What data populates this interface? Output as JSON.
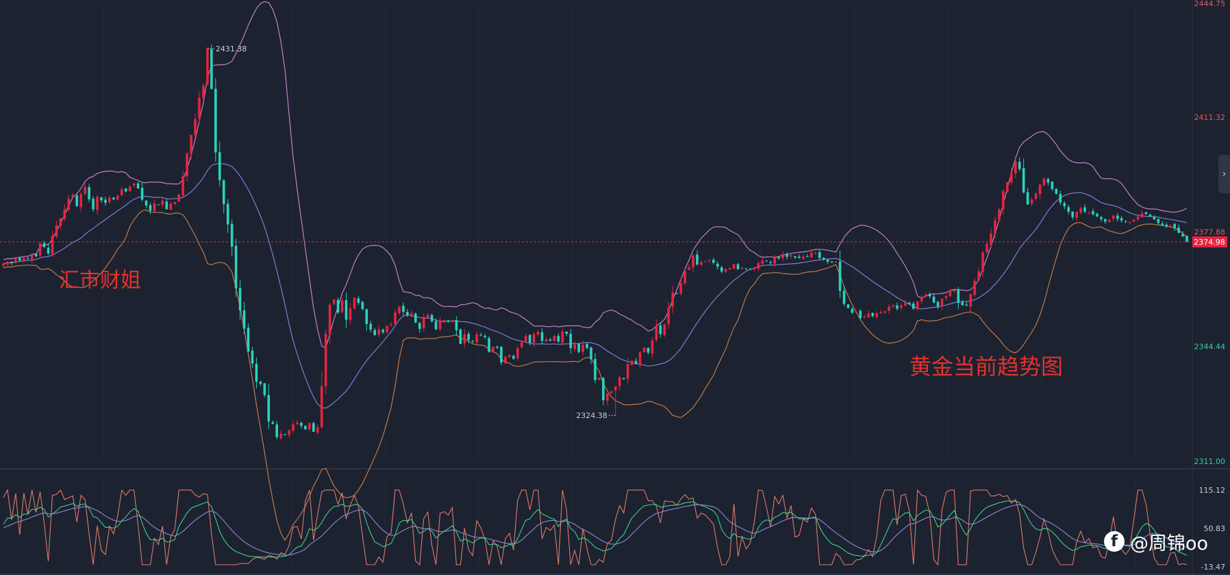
{
  "chart_data": {
    "type": "candlestick",
    "title": "",
    "price_axis": {
      "ticks": [
        {
          "value": 2444.75,
          "label": "2444.75"
        },
        {
          "value": 2411.32,
          "label": "2411.32"
        },
        {
          "value": 2377.88,
          "label": "2377.88"
        },
        {
          "value": 2344.44,
          "label": "2344.44"
        },
        {
          "value": 2311.0,
          "label": "2311.00"
        }
      ],
      "ylim": [
        2311.0,
        2444.75
      ],
      "last_price": {
        "value": 2374.98,
        "label": "2374.98"
      }
    },
    "annotations": [
      {
        "type": "high",
        "value": 2431.38,
        "label": "2431.38",
        "candle_index": 50
      },
      {
        "type": "low",
        "value": 2324.38,
        "label": "2324.38",
        "candle_index": 150
      }
    ],
    "candle_closes": [
      2368.6,
      2369.2,
      2368.8,
      2370.1,
      2369.5,
      2370.4,
      2370.0,
      2371.2,
      2370.8,
      2374.6,
      2373.5,
      2371.6,
      2376.8,
      2379.8,
      2381.9,
      2384.5,
      2387.6,
      2388.7,
      2385.4,
      2388.9,
      2391.0,
      2387.4,
      2384.5,
      2388.2,
      2387.1,
      2386.4,
      2387.9,
      2387.4,
      2388.5,
      2390.3,
      2389.7,
      2391.1,
      2392.0,
      2390.6,
      2387.3,
      2385.6,
      2384.1,
      2386.2,
      2385.8,
      2387.0,
      2384.5,
      2386.1,
      2386.6,
      2388.8,
      2394.2,
      2400.8,
      2406.2,
      2410.8,
      2417.0,
      2420.6,
      2431.4,
      2419.6,
      2401.1,
      2393.0,
      2386.0,
      2380.1,
      2373.6,
      2361.4,
      2355.0,
      2349.7,
      2343.0,
      2339.5,
      2334.2,
      2333.6,
      2330.3,
      2322.6,
      2321.9,
      2318.0,
      2319.1,
      2318.6,
      2320.0,
      2321.8,
      2322.3,
      2321.3,
      2320.3,
      2322.1,
      2319.6,
      2320.9,
      2332.9,
      2348.2,
      2356.7,
      2358.2,
      2354.4,
      2357.9,
      2352.3,
      2355.6,
      2358.7,
      2357.2,
      2355.4,
      2351.0,
      2349.4,
      2347.8,
      2349.5,
      2348.6,
      2350.5,
      2351.0,
      2354.4,
      2356.1,
      2354.6,
      2353.5,
      2354.2,
      2351.4,
      2349.6,
      2353.1,
      2353.7,
      2351.8,
      2349.5,
      2352.1,
      2352.2,
      2351.9,
      2352.2,
      2349.2,
      2345.2,
      2348.0,
      2346.4,
      2345.9,
      2348.0,
      2347.8,
      2347.2,
      2342.9,
      2344.4,
      2344.1,
      2339.8,
      2341.5,
      2342.0,
      2340.9,
      2344.0,
      2345.7,
      2347.6,
      2345.6,
      2348.1,
      2348.8,
      2346.1,
      2346.5,
      2346.1,
      2347.6,
      2345.9,
      2348.8,
      2348.2,
      2344.0,
      2345.0,
      2342.9,
      2345.0,
      2344.0,
      2340.8,
      2334.7,
      2335.4,
      2328.8,
      2330.8,
      2331.4,
      2332.8,
      2335.5,
      2334.9,
      2339.4,
      2340.4,
      2339.4,
      2342.8,
      2344.1,
      2342.7,
      2346.2,
      2350.4,
      2348.1,
      2351.0,
      2355.9,
      2360.2,
      2360.0,
      2363.0,
      2366.5,
      2367.6,
      2371.0,
      2368.4,
      2369.1,
      2369.3,
      2369.6,
      2368.9,
      2367.8,
      2366.3,
      2367.1,
      2367.4,
      2368.5,
      2367.0,
      2367.5,
      2367.1,
      2366.9,
      2367.2,
      2368.8,
      2369.6,
      2369.3,
      2368.8,
      2370.3,
      2370.2,
      2371.4,
      2370.6,
      2371.1,
      2370.4,
      2370.3,
      2370.7,
      2370.6,
      2371.9,
      2371.8,
      2370.3,
      2370.0,
      2369.2,
      2369.0,
      2369.3,
      2360.7,
      2356.9,
      2355.7,
      2354.3,
      2354.6,
      2352.8,
      2353.2,
      2354.1,
      2353.3,
      2354.2,
      2354.5,
      2354.7,
      2356.1,
      2356.6,
      2355.5,
      2356.5,
      2357.3,
      2356.8,
      2355.5,
      2357.6,
      2358.8,
      2359.6,
      2359.1,
      2357.3,
      2356.1,
      2358.4,
      2359.2,
      2360.6,
      2361.0,
      2357.2,
      2356.5,
      2356.4,
      2359.8,
      2363.6,
      2366.4,
      2371.9,
      2374.4,
      2377.5,
      2381.3,
      2384.5,
      2389.8,
      2392.4,
      2395.1,
      2398.5,
      2396.2,
      2389.4,
      2385.9,
      2387.3,
      2389.1,
      2391.7,
      2393.4,
      2392.3,
      2390.4,
      2389.0,
      2386.5,
      2385.4,
      2383.8,
      2382.2,
      2383.7,
      2384.8,
      2383.8,
      2383.7,
      2383.0,
      2382.4,
      2381.6,
      2380.9,
      2381.5,
      2382.6,
      2381.7,
      2381.2,
      2381.0,
      2380.8,
      2381.5,
      2382.4,
      2383.4,
      2383.1,
      2382.3,
      2381.5,
      2380.5,
      2379.9,
      2379.5,
      2379.9,
      2379.1,
      2377.6,
      2376.6,
      2375.0
    ]
  },
  "oscillator": {
    "ticks": [
      {
        "value": 115.12,
        "label": "115.12"
      },
      {
        "value": 50.83,
        "label": "50.83"
      },
      {
        "value": -13.47,
        "label": "-13.47"
      }
    ],
    "ylim": [
      -13.47,
      115.12
    ]
  },
  "colors": {
    "background": "#1c2230",
    "up": "#e8243f",
    "down": "#2ad4bd",
    "bb_upper": "#c87fc6",
    "bb_middle": "#7f7ed6",
    "bb_lower": "#c17a4a",
    "osc_line1": "#e07a6a",
    "osc_line2": "#3fd08c",
    "osc_line3": "#8f8ad8",
    "price_tag": "#e8243f",
    "axis_text_top": "#e25b5b",
    "axis_text_bottom": "#3ccf9c",
    "axis_text_neutral": "#c9ced8"
  },
  "watermarks": {
    "left": "汇市财姐",
    "right": "黄金当前趋势图",
    "social": "@周锦oo",
    "social_icon": "facebook-icon"
  }
}
